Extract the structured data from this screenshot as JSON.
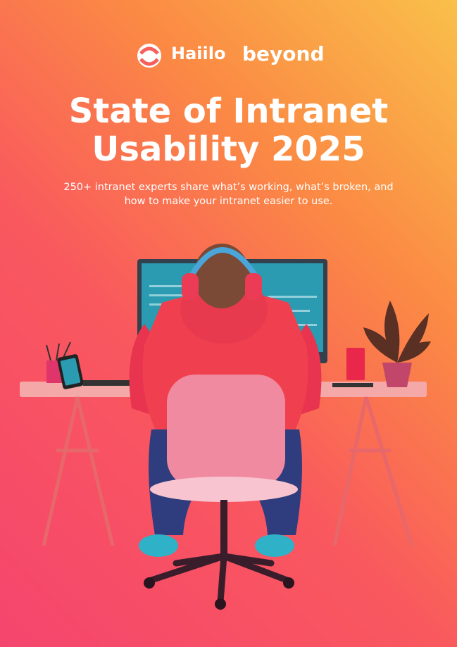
{
  "header": {
    "logos": [
      "Haiilo",
      "beyond"
    ]
  },
  "cover": {
    "title_lines": [
      "State of Intranet",
      "Usability 2025"
    ],
    "subtitle_lines": [
      "250+ intranet experts share what’s working, what’s broken, and",
      "how to make your intranet easier to use."
    ]
  }
}
